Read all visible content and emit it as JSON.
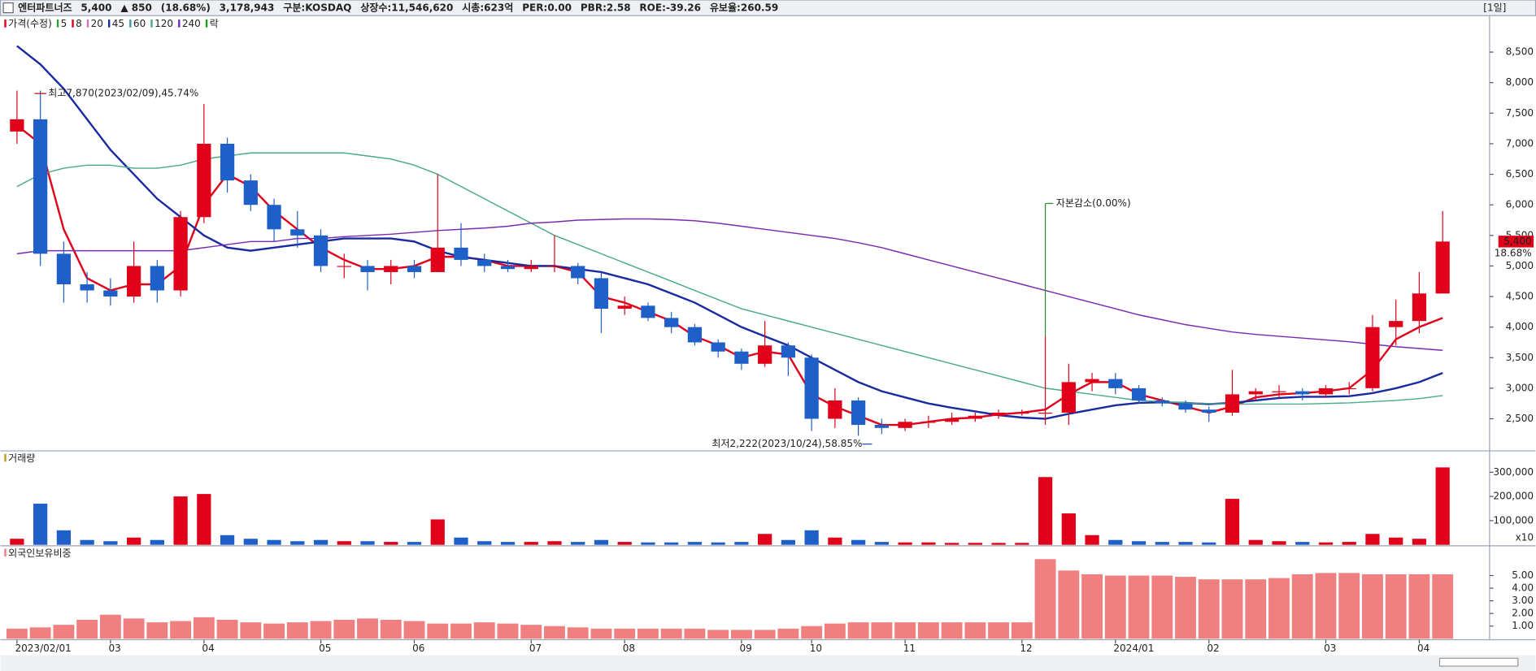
{
  "header": {
    "name": "엔터파트너즈",
    "price": "5,400",
    "change": "▲ 850",
    "rate": "(18.68%)",
    "volume": "3,178,943",
    "info": [
      "구분:KOSDAQ",
      "상장수:11,546,620",
      "시총:623억",
      "PER:0.00",
      "PBR:2.58",
      "ROE:-39.26",
      "유보율:260.59"
    ],
    "period": "[1일]"
  },
  "chart_data": {
    "type": "candlestick",
    "categories": [
      "2023/02/01",
      null,
      null,
      null,
      "03",
      null,
      null,
      null,
      "04",
      null,
      null,
      null,
      null,
      "05",
      null,
      null,
      null,
      "06",
      null,
      null,
      null,
      null,
      "07",
      null,
      null,
      null,
      "08",
      null,
      null,
      null,
      null,
      "09",
      null,
      null,
      "10",
      null,
      null,
      null,
      "11",
      null,
      null,
      null,
      null,
      "12",
      null,
      null,
      null,
      "2024/01",
      null,
      null,
      null,
      "02",
      null,
      null,
      null,
      null,
      "03",
      null,
      null,
      null,
      "04",
      null
    ],
    "open": [
      7200,
      7400,
      5200,
      4700,
      4600,
      4500,
      5000,
      4600,
      5800,
      7000,
      6400,
      6000,
      5600,
      5500,
      5000,
      5000,
      4900,
      5000,
      4900,
      5300,
      5100,
      5000,
      4950,
      5000,
      5000,
      4800,
      4300,
      4350,
      4150,
      4000,
      3750,
      3600,
      3400,
      3700,
      3500,
      2500,
      2800,
      2400,
      2350,
      2450,
      2450,
      2500,
      2550,
      2600,
      2600,
      2600,
      3100,
      3150,
      3000,
      2800,
      2750,
      2650,
      2600,
      2900,
      2950,
      2950,
      2900,
      3000,
      3000,
      4000,
      4100,
      4550
    ],
    "high": [
      7870,
      7870,
      5400,
      4900,
      4800,
      5400,
      5100,
      5900,
      7650,
      7100,
      6500,
      6100,
      5900,
      5600,
      5200,
      5100,
      5100,
      5100,
      6500,
      5700,
      5200,
      5100,
      5100,
      5500,
      5050,
      4900,
      4500,
      4400,
      4250,
      4050,
      3800,
      3650,
      4100,
      3750,
      3550,
      3000,
      2850,
      2500,
      2500,
      2550,
      2600,
      2600,
      2650,
      2650,
      3850,
      3400,
      3250,
      3250,
      3050,
      2850,
      2800,
      2700,
      3300,
      3000,
      3050,
      3000,
      3050,
      3100,
      4200,
      4450,
      4900,
      5900
    ],
    "low": [
      7000,
      5000,
      4400,
      4400,
      4350,
      4400,
      4400,
      4500,
      5700,
      6200,
      5900,
      5400,
      5300,
      4900,
      4800,
      4600,
      4700,
      4800,
      4900,
      5000,
      4900,
      4900,
      4900,
      4900,
      4700,
      3900,
      4200,
      4100,
      3900,
      3700,
      3500,
      3300,
      3350,
      3200,
      2300,
      2350,
      2222,
      2250,
      2300,
      2350,
      2400,
      2450,
      2500,
      2550,
      2400,
      2400,
      2950,
      2900,
      2750,
      2700,
      2600,
      2450,
      2550,
      2800,
      2850,
      2800,
      2850,
      2900,
      2950,
      3700,
      3900,
      4550
    ],
    "close": [
      7400,
      5200,
      4700,
      4600,
      4500,
      5000,
      4600,
      5800,
      7000,
      6400,
      6000,
      5600,
      5500,
      5000,
      5000,
      4900,
      5000,
      4900,
      5300,
      5100,
      5000,
      4950,
      5000,
      5000,
      4800,
      4300,
      4350,
      4150,
      4000,
      3750,
      3600,
      3400,
      3700,
      3500,
      2500,
      2800,
      2400,
      2350,
      2450,
      2450,
      2500,
      2550,
      2600,
      2600,
      2600,
      3100,
      3150,
      3000,
      2800,
      2750,
      2650,
      2600,
      2900,
      2950,
      2950,
      2900,
      3000,
      3000,
      4000,
      4100,
      4550,
      5400
    ],
    "up_color": "#e0001a",
    "down_color": "#1f5fc8",
    "price_label": "가격(수정)",
    "lock_label": "락",
    "lock_color": "#1a9a1a",
    "series": [
      {
        "name": "5",
        "color": "#2ca02c"
      },
      {
        "name": "8",
        "color": "#e0001a",
        "values": [
          7300,
          7000,
          5600,
          4800,
          4600,
          4700,
          4700,
          5000,
          6000,
          6500,
          6300,
          5900,
          5600,
          5300,
          5100,
          4950,
          4950,
          5000,
          5150,
          5150,
          5100,
          5000,
          5000,
          5000,
          4900,
          4500,
          4400,
          4250,
          4100,
          3850,
          3700,
          3500,
          3600,
          3550,
          2900,
          2700,
          2550,
          2400,
          2400,
          2450,
          2500,
          2520,
          2570,
          2600,
          2650,
          2900,
          3100,
          3100,
          2900,
          2800,
          2700,
          2600,
          2700,
          2850,
          2900,
          2920,
          2950,
          3000,
          3300,
          3800,
          4000,
          4150
        ]
      },
      {
        "name": "20",
        "color": "#d070c0"
      },
      {
        "name": "45",
        "color": "#1a2aa0",
        "values": [
          8600,
          8300,
          7900,
          7400,
          6900,
          6500,
          6100,
          5800,
          5500,
          5300,
          5250,
          5300,
          5350,
          5400,
          5450,
          5450,
          5450,
          5400,
          5250,
          5150,
          5100,
          5050,
          5000,
          5000,
          4950,
          4900,
          4800,
          4700,
          4550,
          4400,
          4200,
          4000,
          3850,
          3700,
          3500,
          3300,
          3100,
          2950,
          2850,
          2750,
          2680,
          2620,
          2560,
          2520,
          2500,
          2580,
          2650,
          2720,
          2760,
          2770,
          2760,
          2740,
          2760,
          2800,
          2840,
          2860,
          2860,
          2870,
          2920,
          3000,
          3100,
          3250
        ]
      },
      {
        "name": "60",
        "color": "#3a9aa8"
      },
      {
        "name": "120",
        "color": "#4aaa8a",
        "values": [
          6300,
          6500,
          6600,
          6650,
          6650,
          6600,
          6600,
          6650,
          6750,
          6800,
          6850,
          6850,
          6850,
          6850,
          6850,
          6800,
          6750,
          6650,
          6500,
          6300,
          6100,
          5900,
          5700,
          5500,
          5350,
          5200,
          5050,
          4900,
          4750,
          4600,
          4450,
          4300,
          4200,
          4100,
          4000,
          3900,
          3800,
          3700,
          3600,
          3500,
          3400,
          3300,
          3200,
          3100,
          3000,
          2950,
          2900,
          2850,
          2800,
          2780,
          2760,
          2750,
          2740,
          2740,
          2740,
          2740,
          2750,
          2760,
          2780,
          2800,
          2830,
          2880
        ]
      },
      {
        "name": "240",
        "color": "#7a2ab0",
        "values": [
          5200,
          5250,
          5250,
          5250,
          5250,
          5250,
          5250,
          5250,
          5300,
          5350,
          5400,
          5400,
          5450,
          5450,
          5480,
          5500,
          5520,
          5550,
          5580,
          5600,
          5620,
          5650,
          5700,
          5720,
          5750,
          5760,
          5770,
          5770,
          5760,
          5740,
          5700,
          5650,
          5600,
          5550,
          5500,
          5450,
          5380,
          5300,
          5200,
          5100,
          5000,
          4900,
          4800,
          4700,
          4600,
          4500,
          4400,
          4300,
          4200,
          4120,
          4040,
          3980,
          3920,
          3880,
          3850,
          3820,
          3790,
          3760,
          3720,
          3680,
          3650,
          3620
        ]
      }
    ],
    "ylim": [
      1990,
      9080
    ],
    "yticks": [
      {
        "value": 2500,
        "label": "2,500"
      },
      {
        "value": 3000,
        "label": "3,000"
      },
      {
        "value": 3500,
        "label": "3,500"
      },
      {
        "value": 4000,
        "label": "4,000"
      },
      {
        "value": 4500,
        "label": "4,500"
      },
      {
        "value": 5000,
        "label": "5,000"
      },
      {
        "value": 5500,
        "label": "5,500"
      },
      {
        "value": 6000,
        "label": "6,000"
      },
      {
        "value": 6500,
        "label": "6,500"
      },
      {
        "value": 7000,
        "label": "7,000"
      },
      {
        "value": 7500,
        "label": "7,500"
      },
      {
        "value": 8000,
        "label": "8,000"
      },
      {
        "value": 8500,
        "label": "8,500"
      }
    ],
    "price_tag": "5,400",
    "price_tag_rate": "18.68%",
    "annotations": [
      {
        "text": "최고7,870(2023/02/09),45.74%",
        "index": 1
      },
      {
        "text": "최저2,222(2023/10/24),58.85%",
        "index": 36
      },
      {
        "text": "자본감소(0.00%)",
        "index": 44
      }
    ],
    "volume": {
      "title": "거래량",
      "values": [
        25000,
        170000,
        60000,
        20000,
        15000,
        30000,
        20000,
        200000,
        210000,
        40000,
        25000,
        20000,
        15000,
        20000,
        15000,
        15000,
        12000,
        12000,
        105000,
        30000,
        15000,
        12000,
        12000,
        15000,
        12000,
        20000,
        12000,
        10000,
        10000,
        12000,
        10000,
        12000,
        45000,
        20000,
        60000,
        30000,
        20000,
        12000,
        10000,
        10000,
        8000,
        8000,
        8000,
        8000,
        280000,
        130000,
        40000,
        20000,
        15000,
        12000,
        12000,
        10000,
        190000,
        20000,
        15000,
        12000,
        10000,
        12000,
        45000,
        30000,
        25000,
        320000
      ],
      "ylim": [
        0,
        380000
      ],
      "yticks": [
        {
          "value": 100000,
          "label": "100,000"
        },
        {
          "value": 200000,
          "label": "200,000"
        },
        {
          "value": 300000,
          "label": "300,000"
        }
      ],
      "unit": "x10"
    },
    "foreign": {
      "title": "외국인보유비중",
      "color": "#f08080",
      "values": [
        0.8,
        0.9,
        1.1,
        1.5,
        1.9,
        1.6,
        1.3,
        1.4,
        1.7,
        1.5,
        1.3,
        1.2,
        1.3,
        1.4,
        1.5,
        1.6,
        1.5,
        1.4,
        1.2,
        1.2,
        1.3,
        1.2,
        1.1,
        1.0,
        0.9,
        0.8,
        0.8,
        0.8,
        0.8,
        0.8,
        0.7,
        0.7,
        0.7,
        0.8,
        1.0,
        1.2,
        1.3,
        1.3,
        1.3,
        1.3,
        1.3,
        1.3,
        1.3,
        1.3,
        6.3,
        5.4,
        5.1,
        5.0,
        5.0,
        5.0,
        4.9,
        4.7,
        4.7,
        4.7,
        4.8,
        5.1,
        5.2,
        5.2,
        5.1,
        5.1,
        5.1,
        5.1
      ],
      "ylim": [
        0,
        7.2
      ],
      "yticks": [
        {
          "value": 1,
          "label": "1.00"
        },
        {
          "value": 2,
          "label": "2.00"
        },
        {
          "value": 3,
          "label": "3.00"
        },
        {
          "value": 4,
          "label": "4.00"
        },
        {
          "value": 5,
          "label": "5.00"
        }
      ]
    }
  }
}
